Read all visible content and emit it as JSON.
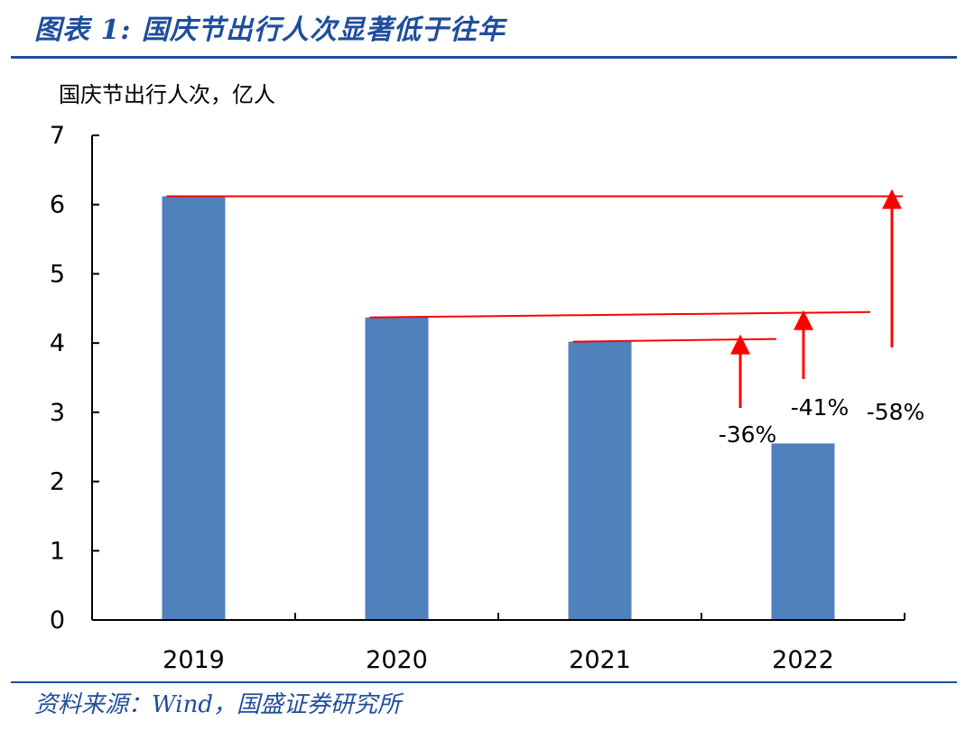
{
  "header": {
    "title": "图表 1:  国庆节出行人次显著低于往年"
  },
  "footer": {
    "source": "资料来源：Wind，国盛证券研究所"
  },
  "chart_data": {
    "type": "bar",
    "ylabel": "国庆节出行人次，亿人",
    "categories": [
      "2019",
      "2020",
      "2021",
      "2022"
    ],
    "values": [
      6.12,
      4.37,
      4.02,
      2.55
    ],
    "ylim": [
      0,
      7
    ],
    "yticks": [
      "0",
      "1",
      "2",
      "3",
      "4",
      "5",
      "6",
      "7"
    ],
    "grid": false,
    "bar_color": "#4f81bd",
    "annotation_color": "#ff0000",
    "annotations": [
      {
        "label": "-36%",
        "from": "2022",
        "to": "2021"
      },
      {
        "label": "-41%",
        "from": "2022",
        "to": "2020"
      },
      {
        "label": "-58%",
        "from": "2022",
        "to": "2019"
      }
    ]
  }
}
